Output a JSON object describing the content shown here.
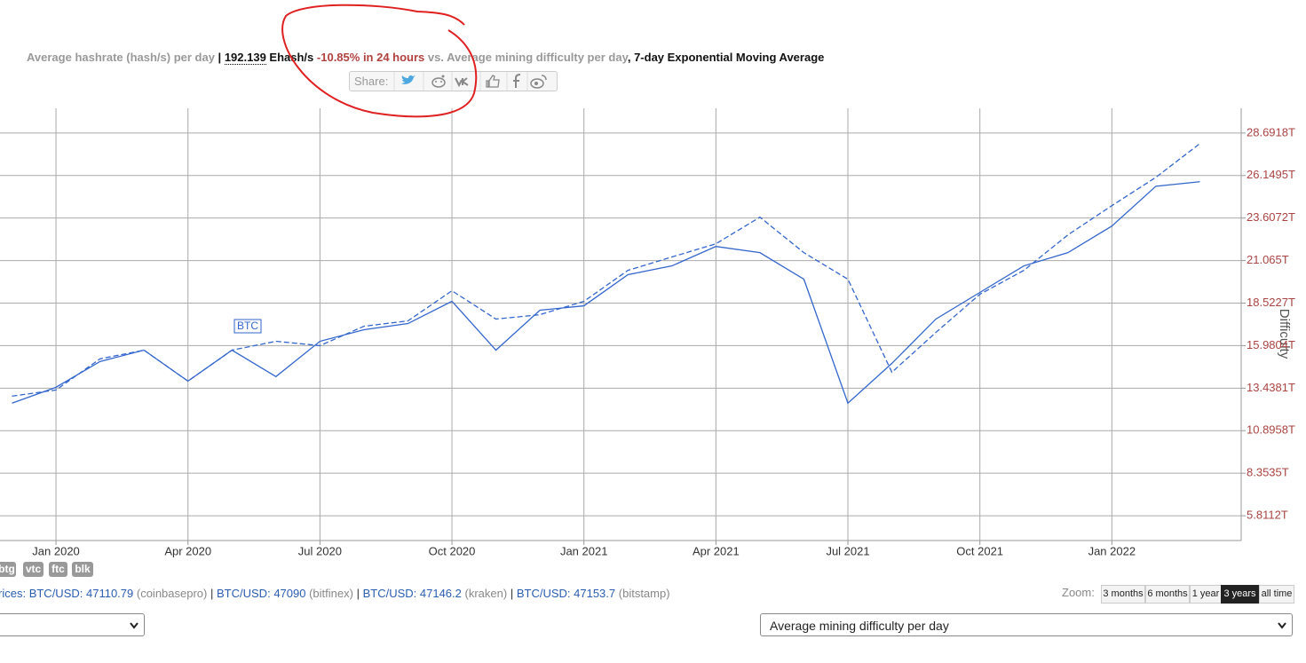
{
  "header": {
    "parts": [
      "Average hashrate (hash/s) per day",
      " | ",
      "192.139",
      " Ehash/s",
      "-10.85% in 24 hours",
      " vs. ",
      "Average mining difficulty per day",
      ", 7-day Exponential Moving Average"
    ]
  },
  "share": {
    "label": "Share:"
  },
  "chart_data": {
    "type": "line",
    "y_label": "Difficulty",
    "x": [
      "2019-12",
      "2020-01",
      "2020-02",
      "2020-03",
      "2020-04",
      "2020-05",
      "2020-06",
      "2020-07",
      "2020-08",
      "2020-09",
      "2020-10",
      "2020-11",
      "2020-12",
      "2021-01",
      "2021-02",
      "2021-03",
      "2021-04",
      "2021-05",
      "2021-06",
      "2021-07",
      "2021-08",
      "2021-09",
      "2021-10",
      "2021-11",
      "2021-12",
      "2022-01",
      "2022-02",
      "2022-03"
    ],
    "series": [
      {
        "color": "#3366cc",
        "values": [
          12.54,
          13.49,
          15.03,
          15.71,
          13.86,
          15.71,
          14.13,
          16.24,
          16.93,
          17.3,
          18.63,
          15.71,
          18.1,
          18.36,
          20.22,
          20.75,
          21.91,
          21.54,
          19.95,
          12.54,
          14.92,
          17.57,
          19.16,
          20.75,
          21.54,
          23.13,
          25.51,
          25.78
        ]
      },
      {
        "color": "#3366cc",
        "dash": true,
        "values": [
          12.96,
          13.33,
          15.19,
          15.71,
          13.86,
          15.71,
          16.24,
          15.98,
          17.14,
          17.46,
          19.26,
          17.57,
          17.83,
          18.63,
          20.48,
          21.28,
          22.07,
          23.66,
          21.54,
          19.95,
          14.39,
          16.77,
          19.05,
          20.48,
          22.6,
          24.35,
          26.04,
          28.06
        ]
      }
    ],
    "annotations": [
      "BTC"
    ],
    "xlim": [
      "2019-12",
      "2022-04"
    ],
    "xticks": [
      {
        "value": "2020-01",
        "label": "Jan 2020"
      },
      {
        "value": "2020-04",
        "label": "Apr 2020"
      },
      {
        "value": "2020-07",
        "label": "Jul 2020"
      },
      {
        "value": "2020-10",
        "label": "Oct 2020"
      },
      {
        "value": "2021-01",
        "label": "Jan 2021"
      },
      {
        "value": "2021-04",
        "label": "Apr 2021"
      },
      {
        "value": "2021-07",
        "label": "Jul 2021"
      },
      {
        "value": "2021-10",
        "label": "Oct 2021"
      },
      {
        "value": "2022-01",
        "label": "Jan 2022"
      }
    ],
    "ylim": [
      4.33,
      30.17
    ],
    "yticks": [
      {
        "value": 5.8112,
        "label": "5.8112T"
      },
      {
        "value": 8.3535,
        "label": "8.3535T"
      },
      {
        "value": 10.8958,
        "label": "10.8958T"
      },
      {
        "value": 13.4381,
        "label": "13.4381T"
      },
      {
        "value": 15.9804,
        "label": "15.9804T"
      },
      {
        "value": 18.5227,
        "label": "18.5227T"
      },
      {
        "value": 21.065,
        "label": "21.065T"
      },
      {
        "value": 23.6072,
        "label": "23.6072T"
      },
      {
        "value": 26.1495,
        "label": "26.1495T"
      },
      {
        "value": 28.6918,
        "label": "28.6918T"
      }
    ],
    "grid": true
  },
  "coins": [
    "btg",
    "vtc",
    "ftc",
    "blk"
  ],
  "prices": {
    "prefix": "rices:",
    "separator": "|",
    "items": [
      {
        "pair": "BTC/USD:",
        "price": 47110.79,
        "exchange": "(coinbasepro)"
      },
      {
        "pair": "BTC/USD:",
        "price": 47090,
        "exchange": "(bitfinex)"
      },
      {
        "pair": "BTC/USD:",
        "price": 47146.2,
        "exchange": "(kraken)"
      },
      {
        "pair": "BTC/USD:",
        "price": 47153.7,
        "exchange": "(bitstamp)"
      }
    ]
  },
  "zoom": {
    "label": "Zoom:",
    "options": [
      "3 months",
      "6 months",
      "1 year",
      "3 years",
      "all time"
    ]
  },
  "selects": {
    "right": "Average mining difficulty per day"
  }
}
